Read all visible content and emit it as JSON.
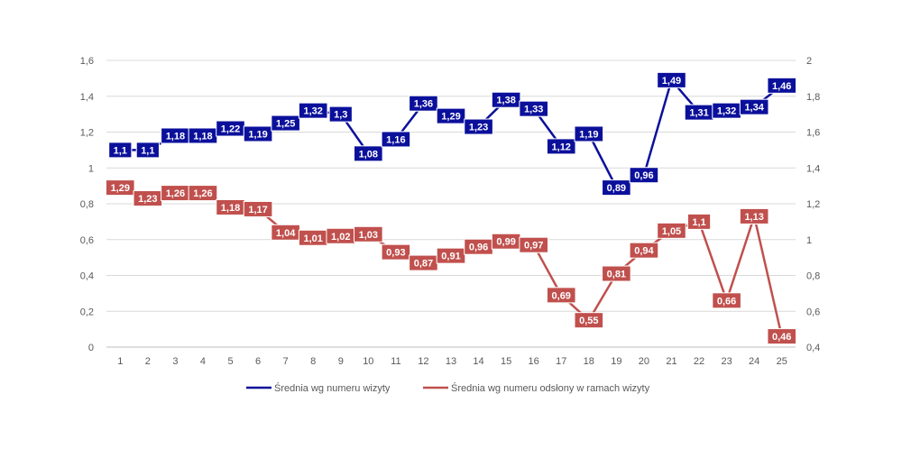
{
  "chart_data": {
    "type": "line",
    "categories": [
      "1",
      "2",
      "3",
      "4",
      "5",
      "6",
      "7",
      "8",
      "9",
      "10",
      "11",
      "12",
      "13",
      "14",
      "15",
      "16",
      "17",
      "18",
      "19",
      "20",
      "21",
      "22",
      "23",
      "24",
      "25"
    ],
    "series": [
      {
        "name": "Średnia wg numeru wizyty",
        "axis": "left",
        "color": "#0B109B",
        "values": [
          1.1,
          1.1,
          1.18,
          1.18,
          1.22,
          1.19,
          1.25,
          1.32,
          1.3,
          1.08,
          1.16,
          1.36,
          1.29,
          1.23,
          1.38,
          1.33,
          1.12,
          1.19,
          0.89,
          0.96,
          1.49,
          1.31,
          1.32,
          1.34,
          1.46
        ],
        "labels": [
          "1,1",
          "1,1",
          "1,18",
          "1,18",
          "1,22",
          "1,19",
          "1,25",
          "1,32",
          "1,3",
          "1,08",
          "1,16",
          "1,36",
          "1,29",
          "1,23",
          "1,38",
          "1,33",
          "1,12",
          "1,19",
          "0,89",
          "0,96",
          "1,49",
          "1,31",
          "1,32",
          "1,34",
          "1,46"
        ]
      },
      {
        "name": "Średnia wg numeru odsłony w ramach wizyty",
        "axis": "right",
        "color": "#C0504D",
        "values": [
          1.29,
          1.23,
          1.26,
          1.26,
          1.18,
          1.17,
          1.04,
          1.01,
          1.02,
          1.03,
          0.93,
          0.87,
          0.91,
          0.96,
          0.99,
          0.97,
          0.69,
          0.55,
          0.81,
          0.94,
          1.05,
          1.1,
          0.66,
          1.13,
          0.46
        ],
        "labels": [
          "1,29",
          "1,23",
          "1,26",
          "1,26",
          "1,18",
          "1,17",
          "1,04",
          "1,01",
          "1,02",
          "1,03",
          "0,93",
          "0,87",
          "0,91",
          "0,96",
          "0,99",
          "0,97",
          "0,69",
          "0,55",
          "0,81",
          "0,94",
          "1,05",
          "1,1",
          "0,66",
          "1,13",
          "0,46"
        ]
      }
    ],
    "y_left": {
      "ylim": [
        0,
        1.6
      ],
      "ticks": [
        0,
        0.2,
        0.4,
        0.6,
        0.8,
        1,
        1.2,
        1.4,
        1.6
      ],
      "tick_labels": [
        "0",
        "0,2",
        "0,4",
        "0,6",
        "0,8",
        "1",
        "1,2",
        "1,4",
        "1,6"
      ]
    },
    "y_right": {
      "ylim": [
        0.4,
        2
      ],
      "ticks": [
        0.4,
        0.6,
        0.8,
        1,
        1.2,
        1.4,
        1.6,
        1.8,
        2
      ],
      "tick_labels": [
        "0,4",
        "0,6",
        "0,8",
        "1",
        "1,2",
        "1,4",
        "1,6",
        "1,8",
        "2"
      ]
    },
    "grid": true,
    "legend_position": "bottom"
  }
}
